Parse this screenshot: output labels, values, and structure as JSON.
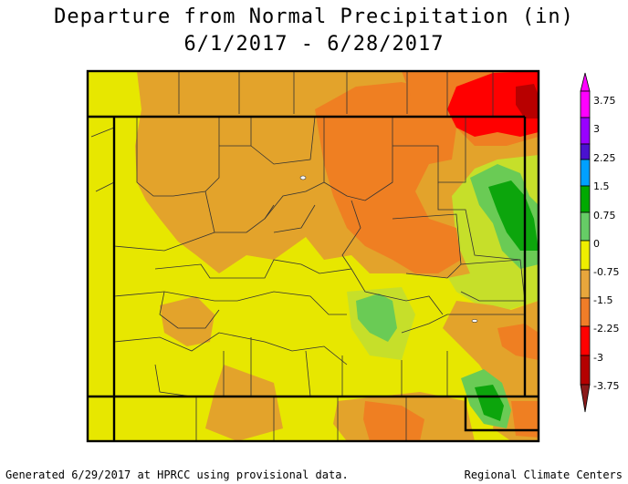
{
  "title_line1": "Departure from Normal Precipitation (in)",
  "title_line2": "6/1/2017 - 6/28/2017",
  "footer_left": "Generated 6/29/2017 at HPRCC using provisional data.",
  "footer_right": "Regional Climate Centers",
  "legend": {
    "labels": [
      "3.75",
      "3",
      "2.25",
      "1.5",
      "0.75",
      "0",
      "-0.75",
      "-1.5",
      "-2.25",
      "-3",
      "-3.75"
    ],
    "colors": [
      "#ff00ff",
      "#9900ff",
      "#4a12d0",
      "#00a0ff",
      "#00aa00",
      "#66cc66",
      "#eeee00",
      "#e8a63c",
      "#f07d28",
      "#ff0000",
      "#b40000"
    ]
  },
  "colors": {
    "yellow": "#e7e700",
    "yellow_green": "#c6df2a",
    "light_orange": "#e3a32b",
    "orange": "#ef7f22",
    "red": "#ff0000",
    "dark_red": "#b80000",
    "light_green": "#6acb55",
    "green": "#0ca50c"
  }
}
